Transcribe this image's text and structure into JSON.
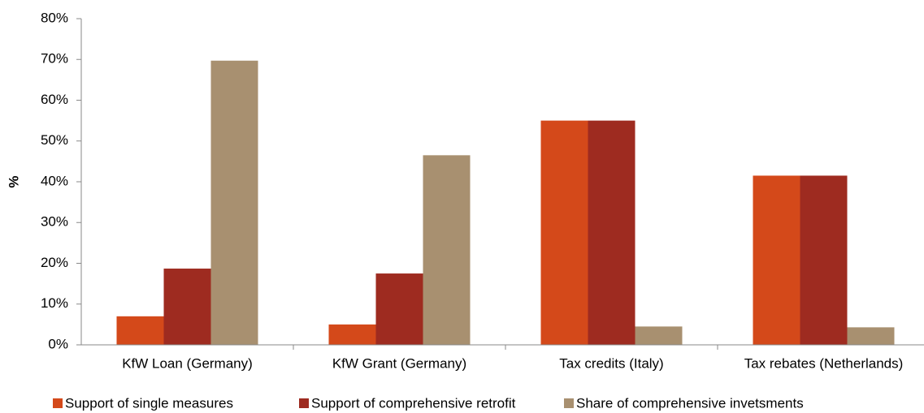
{
  "chart_data": {
    "type": "bar",
    "ylabel": "%",
    "categories": [
      "KfW Loan (Germany)",
      "KfW Grant (Germany)",
      "Tax credits (Italy)",
      "Tax rebates (Netherlands)"
    ],
    "series": [
      {
        "name": "Support of single measures",
        "color": "#d4491a",
        "values": [
          7,
          5,
          55,
          41.5
        ]
      },
      {
        "name": "Support of comprehensive retrofit",
        "color": "#9e2b20",
        "values": [
          18.7,
          17.5,
          55,
          41.5
        ]
      },
      {
        "name": "Share of comprehensive invetsments",
        "color": "#a89070",
        "values": [
          69.7,
          46.5,
          4.5,
          4.3
        ]
      }
    ],
    "ylim": [
      0,
      80
    ],
    "yticks": [
      {
        "value": 0,
        "label": "0%"
      },
      {
        "value": 10,
        "label": "10%"
      },
      {
        "value": 20,
        "label": "20%"
      },
      {
        "value": 30,
        "label": "30%"
      },
      {
        "value": 40,
        "label": "40%"
      },
      {
        "value": 50,
        "label": "50%"
      },
      {
        "value": 60,
        "label": "60%"
      },
      {
        "value": 70,
        "label": "70%"
      },
      {
        "value": 80,
        "label": "80%"
      }
    ],
    "legend": "bottom"
  }
}
